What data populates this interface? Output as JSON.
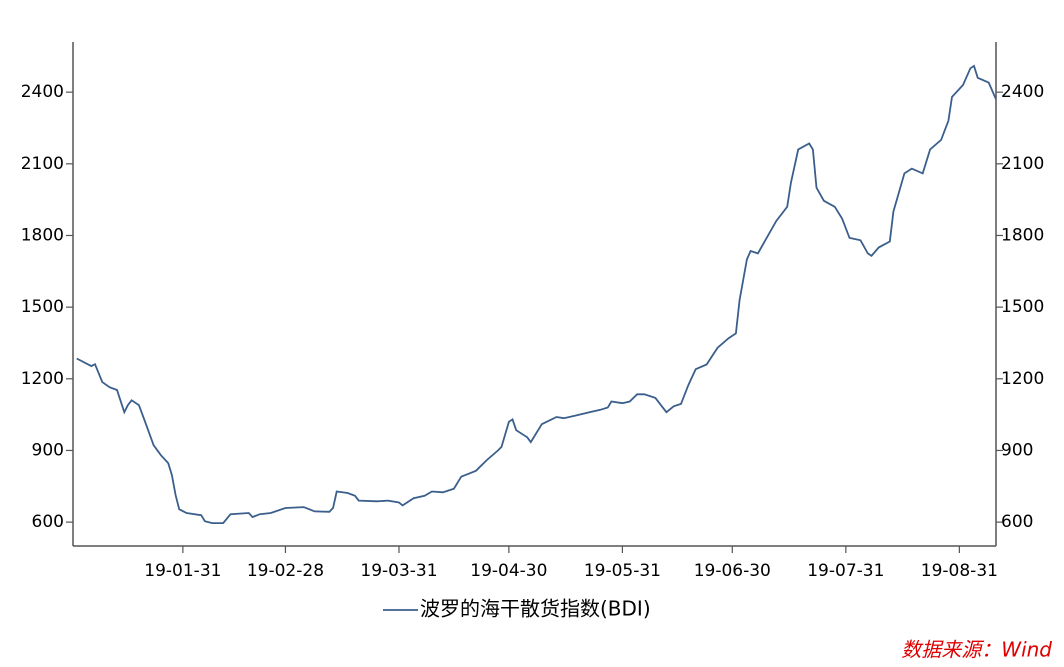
{
  "chart_data": {
    "type": "line",
    "series": [
      {
        "name": "波罗的海干散货指数(BDI)",
        "color": "#3b5f8c",
        "x": [
          "19-01-02",
          "19-01-06",
          "19-01-07",
          "19-01-09",
          "19-01-11",
          "19-01-13",
          "19-01-15",
          "19-01-16",
          "19-01-17",
          "19-01-19",
          "19-01-21",
          "19-01-23",
          "19-01-25",
          "19-01-27",
          "19-01-28",
          "19-01-29",
          "19-01-30",
          "19-02-01",
          "19-02-05",
          "19-02-06",
          "19-02-08",
          "19-02-11",
          "19-02-13",
          "19-02-18",
          "19-02-19",
          "19-02-21",
          "19-02-24",
          "19-02-28",
          "19-03-05",
          "19-03-08",
          "19-03-12",
          "19-03-13",
          "19-03-14",
          "19-03-17",
          "19-03-19",
          "19-03-20",
          "19-03-25",
          "19-03-28",
          "19-03-31",
          "19-04-01",
          "19-04-04",
          "19-04-07",
          "19-04-09",
          "19-04-12",
          "19-04-15",
          "19-04-17",
          "19-04-21",
          "19-04-24",
          "19-04-27",
          "19-04-28",
          "19-04-30",
          "19-05-01",
          "19-05-02",
          "19-05-05",
          "19-05-06",
          "19-05-09",
          "19-05-11",
          "19-05-13",
          "19-05-15",
          "19-05-18",
          "19-05-22",
          "19-05-25",
          "19-05-27",
          "19-05-28",
          "19-05-31",
          "19-06-02",
          "19-06-04",
          "19-06-06",
          "19-06-09",
          "19-06-12",
          "19-06-14",
          "19-06-16",
          "19-06-18",
          "19-06-20",
          "19-06-23",
          "19-06-26",
          "19-06-29",
          "19-07-01",
          "19-07-02",
          "19-07-04",
          "19-07-05",
          "19-07-07",
          "19-07-09",
          "19-07-12",
          "19-07-15",
          "19-07-16",
          "19-07-18",
          "19-07-21",
          "19-07-22",
          "19-07-23",
          "19-07-25",
          "19-07-28",
          "19-07-30",
          "19-08-01",
          "19-08-04",
          "19-08-06",
          "19-08-07",
          "19-08-09",
          "19-08-12",
          "19-08-13",
          "19-08-16",
          "19-08-18",
          "19-08-21",
          "19-08-23",
          "19-08-26",
          "19-08-28",
          "19-08-29",
          "19-09-01",
          "19-09-03",
          "19-09-04",
          "19-09-05",
          "19-09-08",
          "19-09-10"
        ],
        "values": [
          1285,
          1253,
          1261,
          1186,
          1165,
          1153,
          1060,
          1090,
          1110,
          1090,
          1006,
          922,
          880,
          847,
          797,
          713,
          654,
          638,
          629,
          604,
          596,
          596,
          633,
          638,
          621,
          633,
          638,
          659,
          663,
          645,
          643,
          660,
          728,
          722,
          710,
          690,
          687,
          690,
          682,
          670,
          700,
          710,
          728,
          725,
          740,
          790,
          815,
          860,
          900,
          915,
          1020,
          1030,
          985,
          955,
          935,
          1010,
          1025,
          1040,
          1035,
          1045,
          1060,
          1070,
          1080,
          1105,
          1098,
          1105,
          1135,
          1135,
          1120,
          1060,
          1085,
          1095,
          1173,
          1240,
          1260,
          1330,
          1370,
          1390,
          1530,
          1700,
          1735,
          1725,
          1780,
          1860,
          1920,
          2020,
          2160,
          2185,
          2160,
          2000,
          1945,
          1920,
          1870,
          1790,
          1780,
          1725,
          1715,
          1750,
          1775,
          1900,
          2060,
          2080,
          2060,
          2160,
          2200,
          2280,
          2380,
          2430,
          2500,
          2510,
          2460,
          2440,
          2370
        ]
      }
    ],
    "xlim": [
      "19-01-01",
      "19-09-10"
    ],
    "xticks": [
      "19-01-31",
      "19-02-28",
      "19-03-31",
      "19-04-30",
      "19-05-31",
      "19-06-30",
      "19-07-31",
      "19-08-31"
    ],
    "ylim": [
      500,
      2610
    ],
    "yticks": [
      600,
      900,
      1200,
      1500,
      1800,
      2100,
      2400
    ],
    "y2lim": [
      500,
      2610
    ],
    "y2ticks": [
      600,
      900,
      1200,
      1500,
      1800,
      2100,
      2400
    ],
    "legend": "bottom",
    "source": "数据来源：Wind"
  }
}
